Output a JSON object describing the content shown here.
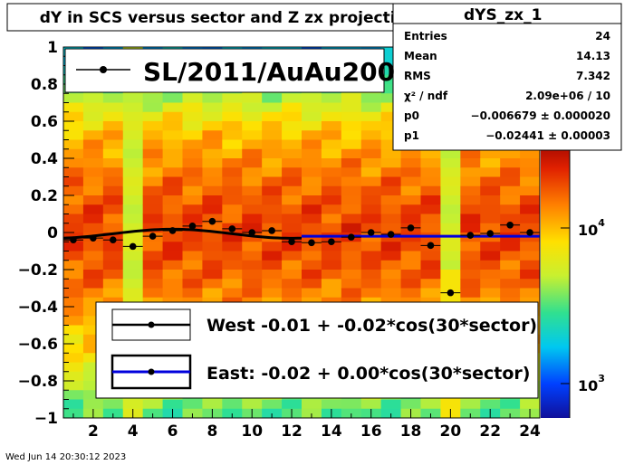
{
  "title": "dY in SCS versus sector and Z zx projection",
  "footer_timestamp": "Wed Jun 14 20:30:12 2023",
  "stats_box": {
    "name": "dYS_zx_1",
    "rows": [
      {
        "label": "Entries",
        "value": "24"
      },
      {
        "label": "Mean",
        "value": "14.13"
      },
      {
        "label": "RMS",
        "value": "7.342"
      },
      {
        "label": "χ² / ndf",
        "value": "2.09e+06 / 10"
      },
      {
        "label": "p0",
        "value": "−0.006679 ± 0.000020"
      },
      {
        "label": "p1",
        "value": "−0.02441 ± 0.00003"
      }
    ]
  },
  "legend_top": {
    "label": "SL/2011/AuAu200"
  },
  "legend_bottom": {
    "west": "West -0.01 + -0.02*cos(30*sector)",
    "east": "East: -0.02 +  0.00*cos(30*sector)"
  },
  "colors": {
    "west_fit": "#000000",
    "east_fit": "#0000dd",
    "points": "#000000"
  },
  "chart_data": {
    "type": "scatter",
    "background": "2D colour map of dY (sector vs Z), log colour scale",
    "x_ticks": [
      "2",
      "4",
      "6",
      "8",
      "10",
      "12",
      "14",
      "16",
      "18",
      "20",
      "22",
      "24"
    ],
    "y_ticks": [
      "1",
      "0.8",
      "0.6",
      "0.4",
      "0.2",
      "0",
      "−0.2",
      "−0.4",
      "−0.6",
      "−0.8",
      "−1"
    ],
    "z_ticks": [
      "10",
      "10"
    ],
    "z_tick_exponents": [
      "4",
      "3"
    ],
    "xlim": [
      0.5,
      24.5
    ],
    "ylim": [
      -1,
      1
    ],
    "series": [
      {
        "x": [
          1,
          2,
          3,
          4,
          5,
          6,
          7,
          8,
          9,
          10,
          11,
          12,
          13,
          14,
          15,
          16,
          17,
          18,
          19,
          20,
          21,
          22,
          23,
          24
        ],
        "y": [
          -0.04,
          -0.03,
          -0.04,
          -0.075,
          -0.02,
          0.01,
          0.035,
          0.06,
          0.02,
          0.0,
          0.01,
          -0.05,
          -0.055,
          -0.05,
          -0.025,
          0.0,
          -0.01,
          0.025,
          -0.07,
          -0.325,
          -0.015,
          -0.005,
          0.04,
          0.0
        ]
      }
    ],
    "fits": [
      {
        "range": [
          0.5,
          12.5
        ],
        "p0": -0.006679,
        "p1": -0.02441
      },
      {
        "range": [
          12.5,
          24.5
        ],
        "p0": -0.02,
        "p1": 0.0
      }
    ]
  }
}
